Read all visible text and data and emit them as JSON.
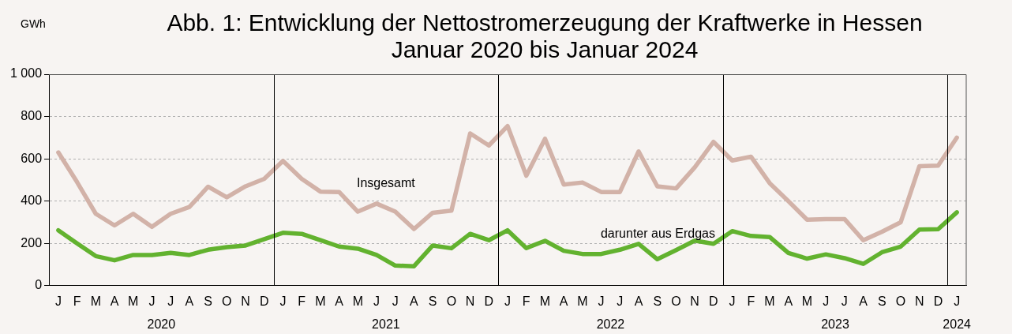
{
  "chart_data": {
    "type": "line",
    "title": "Abb. 1: Entwicklung der Nettostromerzeugung der Kraftwerke in Hessen Januar 2020 bis Januar 2024",
    "ylabel": "GWh",
    "categories": [
      "J",
      "F",
      "M",
      "A",
      "M",
      "J",
      "J",
      "A",
      "S",
      "O",
      "N",
      "D",
      "J",
      "F",
      "M",
      "A",
      "M",
      "J",
      "J",
      "A",
      "S",
      "O",
      "N",
      "D",
      "J",
      "F",
      "M",
      "A",
      "M",
      "J",
      "J",
      "A",
      "S",
      "O",
      "N",
      "D",
      "J",
      "F",
      "M",
      "A",
      "M",
      "J",
      "J",
      "A",
      "S",
      "O",
      "N",
      "D",
      "J"
    ],
    "series": [
      {
        "name": "Insgesamt",
        "color": "#d2b2a8",
        "values": [
          630,
          490,
          340,
          285,
          340,
          278,
          340,
          372,
          468,
          418,
          470,
          505,
          590,
          505,
          445,
          443,
          350,
          388,
          350,
          268,
          345,
          355,
          720,
          663,
          755,
          520,
          695,
          478,
          488,
          443,
          443,
          635,
          470,
          460,
          560,
          680,
          592,
          610,
          485,
          400,
          312,
          315,
          315,
          215,
          255,
          300,
          565,
          568,
          700
        ]
      },
      {
        "name": "darunter aus Erdgas",
        "color": "#62b22f",
        "values": [
          262,
          200,
          140,
          120,
          145,
          145,
          155,
          145,
          170,
          182,
          190,
          220,
          250,
          245,
          215,
          185,
          175,
          145,
          95,
          92,
          190,
          177,
          245,
          215,
          262,
          178,
          212,
          165,
          150,
          150,
          170,
          198,
          125,
          168,
          213,
          198,
          258,
          235,
          230,
          155,
          128,
          148,
          130,
          103,
          158,
          185,
          265,
          267,
          347
        ]
      }
    ],
    "ylim": [
      0,
      1000
    ],
    "yticks": [
      0,
      200,
      400,
      600,
      800,
      {
        "value": 1000,
        "label": "1 000"
      }
    ],
    "grid": "y",
    "line_style": "solid",
    "marker": "none",
    "legend": false,
    "annotations": [
      "2020",
      "2021",
      "2022",
      "2023",
      "2024"
    ]
  }
}
